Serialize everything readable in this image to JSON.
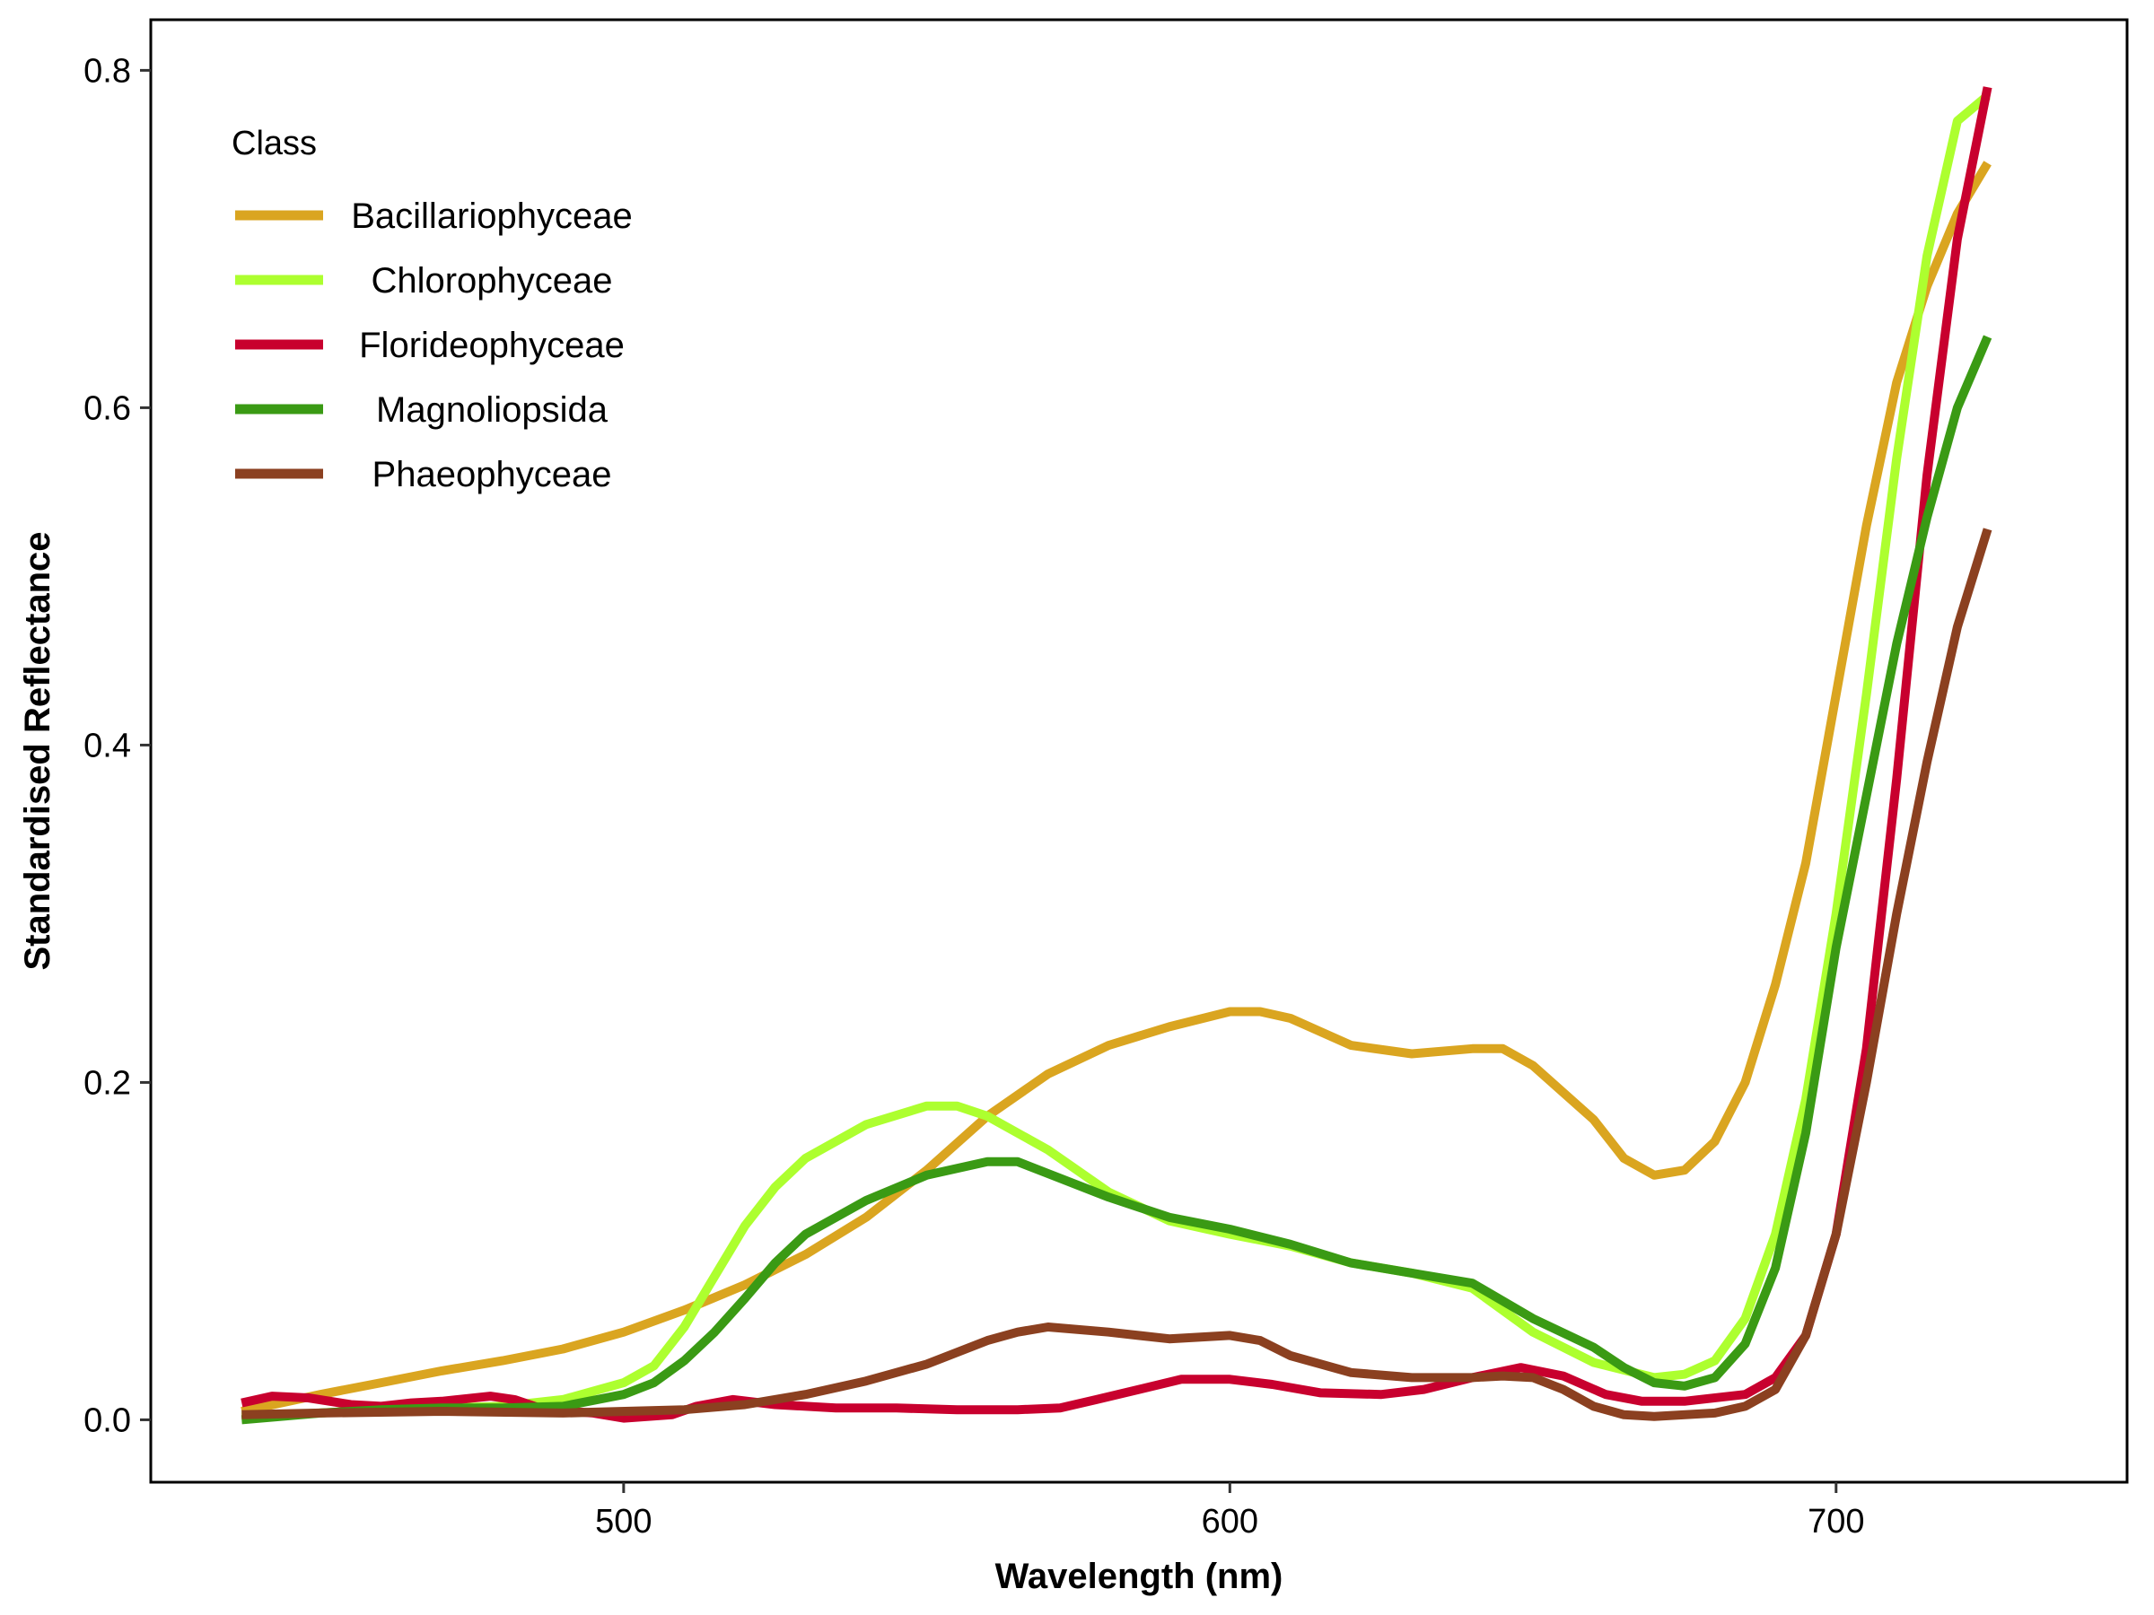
{
  "chart_data": {
    "type": "line",
    "title": "",
    "xlabel": "Wavelength (nm)",
    "ylabel": "Standardised Reflectance",
    "xlim": [
      422,
      748
    ],
    "ylim": [
      -0.037,
      0.83
    ],
    "x_ticks": [
      500,
      600,
      700
    ],
    "y_ticks": [
      0.0,
      0.2,
      0.4,
      0.6,
      0.8
    ],
    "x_tick_labels": [
      "500",
      "600",
      "700"
    ],
    "y_tick_labels": [
      "0.0",
      "0.2",
      "0.4",
      "0.6",
      "0.8"
    ],
    "grid": false,
    "legend": {
      "title": "Class",
      "position": "top-left"
    },
    "series": [
      {
        "name": "Bacillariophyceae",
        "color": "#DAA520",
        "points": [
          [
            437,
            0.005
          ],
          [
            450,
            0.015
          ],
          [
            460,
            0.022
          ],
          [
            470,
            0.029
          ],
          [
            480,
            0.035
          ],
          [
            490,
            0.042
          ],
          [
            500,
            0.052
          ],
          [
            510,
            0.065
          ],
          [
            520,
            0.08
          ],
          [
            530,
            0.098
          ],
          [
            540,
            0.12
          ],
          [
            550,
            0.148
          ],
          [
            560,
            0.18
          ],
          [
            570,
            0.205
          ],
          [
            580,
            0.222
          ],
          [
            590,
            0.233
          ],
          [
            600,
            0.242
          ],
          [
            605,
            0.242
          ],
          [
            610,
            0.238
          ],
          [
            620,
            0.222
          ],
          [
            630,
            0.217
          ],
          [
            640,
            0.22
          ],
          [
            645,
            0.22
          ],
          [
            650,
            0.21
          ],
          [
            660,
            0.178
          ],
          [
            665,
            0.155
          ],
          [
            670,
            0.145
          ],
          [
            675,
            0.148
          ],
          [
            680,
            0.165
          ],
          [
            685,
            0.2
          ],
          [
            690,
            0.258
          ],
          [
            695,
            0.33
          ],
          [
            700,
            0.43
          ],
          [
            705,
            0.53
          ],
          [
            710,
            0.615
          ],
          [
            715,
            0.672
          ],
          [
            720,
            0.715
          ],
          [
            725,
            0.745
          ]
        ]
      },
      {
        "name": "Chlorophyceae",
        "color": "#ADFF2F",
        "points": [
          [
            437,
            0.002
          ],
          [
            450,
            0.004
          ],
          [
            460,
            0.006
          ],
          [
            470,
            0.007
          ],
          [
            480,
            0.008
          ],
          [
            490,
            0.012
          ],
          [
            500,
            0.022
          ],
          [
            505,
            0.032
          ],
          [
            510,
            0.055
          ],
          [
            515,
            0.085
          ],
          [
            520,
            0.115
          ],
          [
            525,
            0.138
          ],
          [
            530,
            0.155
          ],
          [
            540,
            0.175
          ],
          [
            550,
            0.186
          ],
          [
            555,
            0.186
          ],
          [
            560,
            0.18
          ],
          [
            570,
            0.16
          ],
          [
            580,
            0.135
          ],
          [
            590,
            0.118
          ],
          [
            600,
            0.11
          ],
          [
            610,
            0.103
          ],
          [
            620,
            0.093
          ],
          [
            630,
            0.087
          ],
          [
            640,
            0.078
          ],
          [
            650,
            0.052
          ],
          [
            660,
            0.034
          ],
          [
            670,
            0.025
          ],
          [
            675,
            0.027
          ],
          [
            680,
            0.035
          ],
          [
            685,
            0.06
          ],
          [
            690,
            0.11
          ],
          [
            695,
            0.19
          ],
          [
            700,
            0.3
          ],
          [
            705,
            0.43
          ],
          [
            710,
            0.57
          ],
          [
            715,
            0.69
          ],
          [
            720,
            0.77
          ],
          [
            725,
            0.785
          ]
        ]
      },
      {
        "name": "Florideophyceae",
        "color": "#C8002E",
        "points": [
          [
            437,
            0.01
          ],
          [
            442,
            0.014
          ],
          [
            448,
            0.013
          ],
          [
            455,
            0.009
          ],
          [
            460,
            0.008
          ],
          [
            465,
            0.01
          ],
          [
            470,
            0.011
          ],
          [
            478,
            0.014
          ],
          [
            482,
            0.012
          ],
          [
            487,
            0.006
          ],
          [
            495,
            0.004
          ],
          [
            500,
            0.001
          ],
          [
            508,
            0.003
          ],
          [
            512,
            0.008
          ],
          [
            518,
            0.012
          ],
          [
            525,
            0.009
          ],
          [
            535,
            0.007
          ],
          [
            545,
            0.007
          ],
          [
            555,
            0.006
          ],
          [
            565,
            0.006
          ],
          [
            572,
            0.007
          ],
          [
            578,
            0.012
          ],
          [
            585,
            0.018
          ],
          [
            592,
            0.024
          ],
          [
            600,
            0.024
          ],
          [
            607,
            0.021
          ],
          [
            615,
            0.016
          ],
          [
            625,
            0.015
          ],
          [
            632,
            0.018
          ],
          [
            640,
            0.025
          ],
          [
            648,
            0.031
          ],
          [
            655,
            0.026
          ],
          [
            662,
            0.015
          ],
          [
            668,
            0.011
          ],
          [
            675,
            0.011
          ],
          [
            685,
            0.015
          ],
          [
            690,
            0.025
          ],
          [
            695,
            0.05
          ],
          [
            700,
            0.11
          ],
          [
            705,
            0.22
          ],
          [
            710,
            0.38
          ],
          [
            715,
            0.56
          ],
          [
            720,
            0.7
          ],
          [
            725,
            0.79
          ]
        ]
      },
      {
        "name": "Magnoliopsida",
        "color": "#3A9A14",
        "points": [
          [
            437,
            0.0
          ],
          [
            450,
            0.004
          ],
          [
            460,
            0.006
          ],
          [
            470,
            0.007
          ],
          [
            480,
            0.007
          ],
          [
            490,
            0.008
          ],
          [
            500,
            0.015
          ],
          [
            505,
            0.022
          ],
          [
            510,
            0.035
          ],
          [
            515,
            0.052
          ],
          [
            520,
            0.072
          ],
          [
            525,
            0.093
          ],
          [
            530,
            0.11
          ],
          [
            540,
            0.13
          ],
          [
            550,
            0.145
          ],
          [
            560,
            0.153
          ],
          [
            565,
            0.153
          ],
          [
            570,
            0.146
          ],
          [
            580,
            0.132
          ],
          [
            590,
            0.12
          ],
          [
            600,
            0.113
          ],
          [
            610,
            0.104
          ],
          [
            620,
            0.093
          ],
          [
            630,
            0.087
          ],
          [
            640,
            0.081
          ],
          [
            650,
            0.06
          ],
          [
            660,
            0.043
          ],
          [
            665,
            0.031
          ],
          [
            670,
            0.022
          ],
          [
            675,
            0.02
          ],
          [
            680,
            0.025
          ],
          [
            685,
            0.045
          ],
          [
            690,
            0.09
          ],
          [
            695,
            0.17
          ],
          [
            700,
            0.28
          ],
          [
            705,
            0.37
          ],
          [
            710,
            0.46
          ],
          [
            715,
            0.535
          ],
          [
            720,
            0.6
          ],
          [
            725,
            0.642
          ]
        ]
      },
      {
        "name": "Phaeophyceae",
        "color": "#8B4020",
        "points": [
          [
            437,
            0.003
          ],
          [
            450,
            0.004
          ],
          [
            470,
            0.005
          ],
          [
            490,
            0.004
          ],
          [
            510,
            0.006
          ],
          [
            520,
            0.009
          ],
          [
            530,
            0.015
          ],
          [
            540,
            0.023
          ],
          [
            550,
            0.033
          ],
          [
            560,
            0.047
          ],
          [
            565,
            0.052
          ],
          [
            570,
            0.055
          ],
          [
            580,
            0.052
          ],
          [
            590,
            0.048
          ],
          [
            600,
            0.05
          ],
          [
            605,
            0.047
          ],
          [
            610,
            0.038
          ],
          [
            620,
            0.028
          ],
          [
            630,
            0.025
          ],
          [
            640,
            0.025
          ],
          [
            645,
            0.026
          ],
          [
            650,
            0.025
          ],
          [
            655,
            0.018
          ],
          [
            660,
            0.008
          ],
          [
            665,
            0.003
          ],
          [
            670,
            0.002
          ],
          [
            680,
            0.004
          ],
          [
            685,
            0.008
          ],
          [
            690,
            0.018
          ],
          [
            695,
            0.05
          ],
          [
            700,
            0.11
          ],
          [
            705,
            0.2
          ],
          [
            710,
            0.3
          ],
          [
            715,
            0.39
          ],
          [
            720,
            0.47
          ],
          [
            725,
            0.528
          ]
        ]
      }
    ]
  }
}
